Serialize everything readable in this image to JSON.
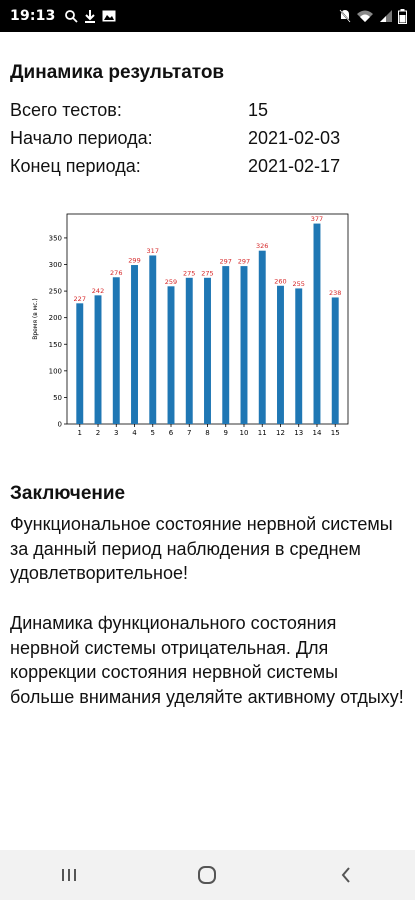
{
  "status_bar": {
    "time": "19:13"
  },
  "summary": {
    "title": "Динамика результатов",
    "rows": [
      {
        "label": "Всего тестов:",
        "value": "15"
      },
      {
        "label": "Начало периода:",
        "value": "2021-02-03"
      },
      {
        "label": "Конец периода:",
        "value": "2021-02-17"
      }
    ]
  },
  "chart_data": {
    "type": "bar",
    "categories": [
      "1",
      "2",
      "3",
      "4",
      "5",
      "6",
      "7",
      "8",
      "9",
      "10",
      "11",
      "12",
      "13",
      "14",
      "15"
    ],
    "values": [
      227,
      242,
      276,
      299,
      317,
      259,
      275,
      275,
      297,
      297,
      326,
      260,
      255,
      377,
      238
    ],
    "data_labels": [
      "227",
      "242",
      "276",
      "299",
      "317",
      "259",
      "275",
      "275",
      "297",
      "297",
      "326",
      "260",
      "255",
      "377",
      "238"
    ],
    "ylabel": "Время (в мс.)",
    "yticks": [
      0,
      50,
      100,
      150,
      200,
      250,
      300,
      350
    ],
    "ylim": [
      0,
      395
    ],
    "bar_color": "#1f77b4",
    "label_color": "#d62728",
    "grid": false
  },
  "conclusion": {
    "title": "Заключение",
    "text1": "Функциональное состояние нервной системы за данный период наблюдения в среднем удовлетворительное!",
    "text2": "Динамика функционального состояния нервной системы отрицательная. Для коррекции состояния нервной системы больше внимания уделяйте активному отдыху!"
  }
}
